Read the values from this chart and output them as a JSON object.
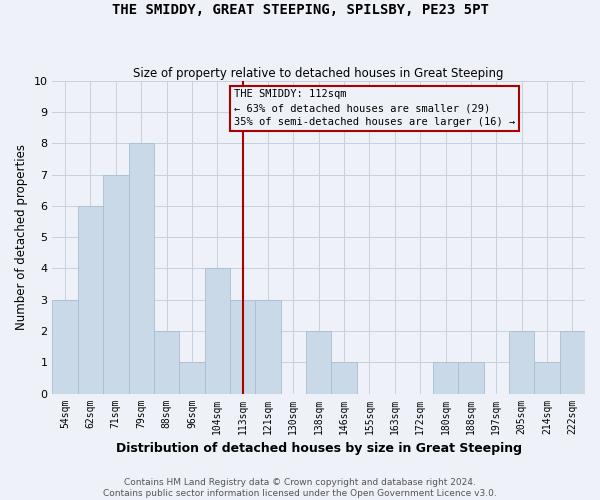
{
  "title": "THE SMIDDY, GREAT STEEPING, SPILSBY, PE23 5PT",
  "subtitle": "Size of property relative to detached houses in Great Steeping",
  "xlabel": "Distribution of detached houses by size in Great Steeping",
  "ylabel": "Number of detached properties",
  "categories": [
    "54sqm",
    "62sqm",
    "71sqm",
    "79sqm",
    "88sqm",
    "96sqm",
    "104sqm",
    "113sqm",
    "121sqm",
    "130sqm",
    "138sqm",
    "146sqm",
    "155sqm",
    "163sqm",
    "172sqm",
    "180sqm",
    "188sqm",
    "197sqm",
    "205sqm",
    "214sqm",
    "222sqm"
  ],
  "values": [
    3,
    6,
    7,
    8,
    2,
    1,
    4,
    3,
    3,
    0,
    2,
    1,
    0,
    0,
    0,
    1,
    1,
    0,
    2,
    1,
    2
  ],
  "bar_color": "#c9d9e8",
  "bar_edge_color": "#a8bece",
  "vline_x": 7,
  "vline_color": "#aa0000",
  "annotation_title": "THE SMIDDY: 112sqm",
  "annotation_line1": "← 63% of detached houses are smaller (29)",
  "annotation_line2": "35% of semi-detached houses are larger (16) →",
  "annotation_box_color": "#aa0000",
  "ylim": [
    0,
    10
  ],
  "yticks": [
    0,
    1,
    2,
    3,
    4,
    5,
    6,
    7,
    8,
    9,
    10
  ],
  "grid_color": "#c8d0dc",
  "background_color": "#eef2f8",
  "footnote1": "Contains HM Land Registry data © Crown copyright and database right 2024.",
  "footnote2": "Contains public sector information licensed under the Open Government Licence v3.0."
}
